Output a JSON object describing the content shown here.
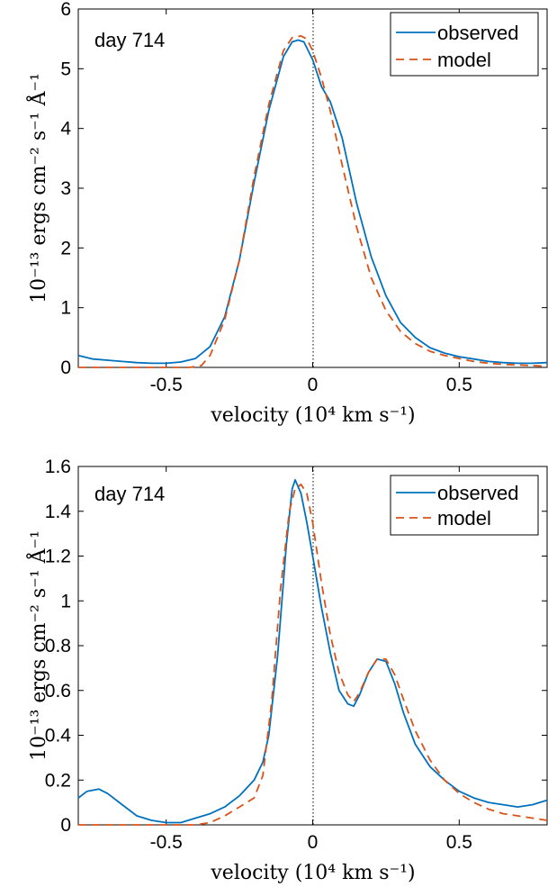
{
  "chart_data": [
    {
      "type": "line",
      "title": "",
      "annotation": "day 714",
      "xlabel": "velocity (10⁴ km s⁻¹)",
      "ylabel": "10⁻¹³ ergs cm⁻² s⁻¹ Å⁻¹",
      "xlim": [
        -0.8,
        0.8
      ],
      "ylim": [
        0,
        6
      ],
      "xticks": [
        -0.5,
        0,
        0.5
      ],
      "xtick_labels": [
        "-0.5",
        "0",
        "0.5"
      ],
      "yticks": [
        0,
        1,
        2,
        3,
        4,
        5,
        6
      ],
      "ytick_labels": [
        "0",
        "1",
        "2",
        "3",
        "4",
        "5",
        "6"
      ],
      "grid": false,
      "legend_position": "top-right",
      "reference_line_x": 0,
      "series": [
        {
          "name": "observed",
          "color": "#0072BD",
          "style": "solid",
          "x": [
            -0.8,
            -0.75,
            -0.7,
            -0.65,
            -0.6,
            -0.55,
            -0.5,
            -0.45,
            -0.4,
            -0.35,
            -0.3,
            -0.25,
            -0.2,
            -0.15,
            -0.1,
            -0.07,
            -0.05,
            -0.03,
            0.0,
            0.03,
            0.06,
            0.1,
            0.15,
            0.2,
            0.25,
            0.3,
            0.35,
            0.4,
            0.45,
            0.5,
            0.55,
            0.6,
            0.65,
            0.7,
            0.75,
            0.8
          ],
          "y": [
            0.2,
            0.14,
            0.12,
            0.1,
            0.08,
            0.07,
            0.07,
            0.09,
            0.15,
            0.35,
            0.85,
            1.8,
            3.1,
            4.3,
            5.2,
            5.45,
            5.48,
            5.45,
            5.15,
            4.7,
            4.45,
            3.85,
            2.75,
            1.85,
            1.2,
            0.75,
            0.5,
            0.33,
            0.24,
            0.18,
            0.14,
            0.1,
            0.08,
            0.07,
            0.07,
            0.08
          ]
        },
        {
          "name": "model",
          "color": "#D95319",
          "style": "dashed",
          "x": [
            -0.8,
            -0.7,
            -0.6,
            -0.5,
            -0.42,
            -0.38,
            -0.35,
            -0.3,
            -0.25,
            -0.2,
            -0.15,
            -0.1,
            -0.07,
            -0.04,
            -0.02,
            0.0,
            0.03,
            0.06,
            0.1,
            0.15,
            0.2,
            0.25,
            0.3,
            0.35,
            0.4,
            0.45,
            0.5,
            0.55,
            0.6,
            0.65,
            0.7,
            0.75,
            0.8
          ],
          "y": [
            0.0,
            0.0,
            0.0,
            0.0,
            0.0,
            0.03,
            0.2,
            0.8,
            1.8,
            3.2,
            4.4,
            5.3,
            5.52,
            5.55,
            5.5,
            5.3,
            4.85,
            4.3,
            3.4,
            2.35,
            1.5,
            0.95,
            0.6,
            0.4,
            0.27,
            0.2,
            0.15,
            0.1,
            0.07,
            0.05,
            0.04,
            0.03,
            0.02
          ]
        }
      ]
    },
    {
      "type": "line",
      "title": "",
      "annotation": "day 714",
      "xlabel": "velocity (10⁴ km s⁻¹)",
      "ylabel": "10⁻¹³ ergs cm⁻² s⁻¹ Å⁻¹",
      "xlim": [
        -0.8,
        0.8
      ],
      "ylim": [
        0,
        1.6
      ],
      "xticks": [
        -0.5,
        0,
        0.5
      ],
      "xtick_labels": [
        "-0.5",
        "0",
        "0.5"
      ],
      "yticks": [
        0,
        0.2,
        0.4,
        0.6,
        0.8,
        1.0,
        1.2,
        1.4,
        1.6
      ],
      "ytick_labels": [
        "0",
        "0.2",
        "0.4",
        "0.6",
        "0.8",
        "1",
        "1.2",
        "1.4",
        "1.6"
      ],
      "grid": false,
      "legend_position": "top-right",
      "reference_line_x": 0,
      "series": [
        {
          "name": "observed",
          "color": "#0072BD",
          "style": "solid",
          "x": [
            -0.8,
            -0.77,
            -0.73,
            -0.7,
            -0.65,
            -0.6,
            -0.55,
            -0.5,
            -0.45,
            -0.4,
            -0.35,
            -0.3,
            -0.25,
            -0.2,
            -0.17,
            -0.15,
            -0.12,
            -0.09,
            -0.07,
            -0.06,
            -0.04,
            -0.02,
            0.0,
            0.03,
            0.06,
            0.09,
            0.12,
            0.14,
            0.16,
            0.19,
            0.22,
            0.25,
            0.28,
            0.31,
            0.35,
            0.4,
            0.45,
            0.5,
            0.55,
            0.6,
            0.65,
            0.7,
            0.75,
            0.8
          ],
          "y": [
            0.12,
            0.15,
            0.16,
            0.14,
            0.09,
            0.04,
            0.02,
            0.01,
            0.01,
            0.03,
            0.05,
            0.08,
            0.13,
            0.2,
            0.28,
            0.4,
            0.75,
            1.25,
            1.5,
            1.54,
            1.48,
            1.35,
            1.2,
            0.97,
            0.77,
            0.6,
            0.54,
            0.53,
            0.58,
            0.68,
            0.74,
            0.73,
            0.63,
            0.5,
            0.36,
            0.26,
            0.2,
            0.15,
            0.12,
            0.1,
            0.09,
            0.08,
            0.09,
            0.11
          ]
        },
        {
          "name": "model",
          "color": "#D95319",
          "style": "dashed",
          "x": [
            -0.8,
            -0.7,
            -0.6,
            -0.5,
            -0.4,
            -0.35,
            -0.3,
            -0.25,
            -0.2,
            -0.17,
            -0.14,
            -0.11,
            -0.08,
            -0.06,
            -0.04,
            -0.02,
            0.0,
            0.03,
            0.06,
            0.09,
            0.12,
            0.14,
            0.16,
            0.19,
            0.22,
            0.25,
            0.28,
            0.31,
            0.35,
            0.4,
            0.45,
            0.5,
            0.55,
            0.6,
            0.65,
            0.7,
            0.75,
            0.8
          ],
          "y": [
            0.0,
            0.0,
            0.0,
            0.0,
            0.0,
            0.01,
            0.04,
            0.08,
            0.12,
            0.22,
            0.55,
            1.05,
            1.4,
            1.5,
            1.52,
            1.48,
            1.35,
            1.08,
            0.85,
            0.68,
            0.58,
            0.55,
            0.59,
            0.68,
            0.74,
            0.74,
            0.67,
            0.56,
            0.42,
            0.29,
            0.2,
            0.14,
            0.1,
            0.07,
            0.05,
            0.04,
            0.03,
            0.02
          ]
        }
      ]
    }
  ]
}
